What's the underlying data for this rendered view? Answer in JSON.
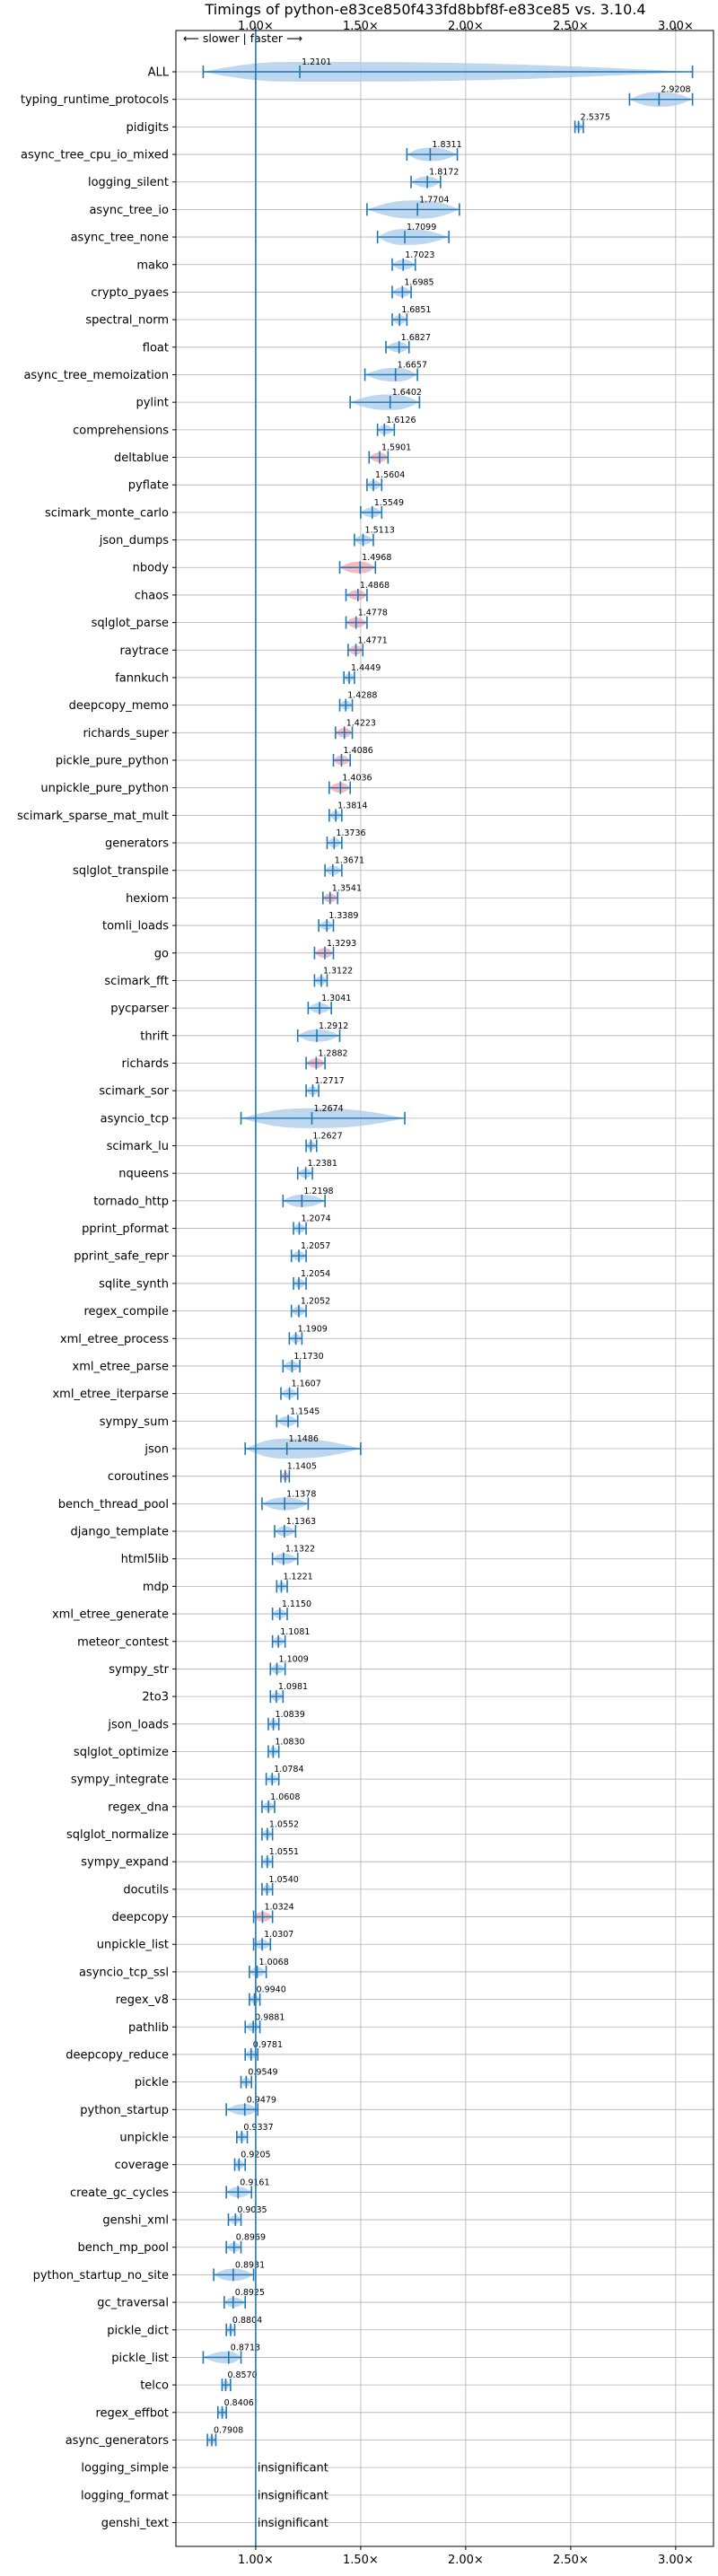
{
  "chart_data": {
    "type": "violin",
    "title": "Timings of python-e83ce850f433fd8bbf8f-e83ce85 vs. 3.10.4",
    "direction_label": "⟵ slower | faster ⟶",
    "xlim": [
      0.62,
      3.18
    ],
    "xticks": [
      1.0,
      1.5,
      2.0,
      2.5,
      3.0
    ],
    "xtick_labels": [
      "1.00×",
      "1.50×",
      "2.00×",
      "2.50×",
      "3.00×"
    ],
    "grid": true,
    "reference_line": 1.0,
    "colors": {
      "violin": "#a9c9e8",
      "marker": "#1f77b4",
      "highlight": "#f4a0a8"
    },
    "insignificant_label": "insignificant",
    "benchmarks": [
      {
        "name": "ALL",
        "value": 1.2101,
        "label": "1.2101",
        "min": 0.75,
        "max": 3.08
      },
      {
        "name": "typing_runtime_protocols",
        "value": 2.9208,
        "label": "2.9208",
        "min": 2.78,
        "max": 3.08
      },
      {
        "name": "pidigits",
        "value": 2.5375,
        "label": "2.5375",
        "min": 2.52,
        "max": 2.56
      },
      {
        "name": "async_tree_cpu_io_mixed",
        "value": 1.8311,
        "label": "1.8311",
        "min": 1.72,
        "max": 1.96
      },
      {
        "name": "logging_silent",
        "value": 1.8172,
        "label": "1.8172",
        "min": 1.74,
        "max": 1.88
      },
      {
        "name": "async_tree_io",
        "value": 1.7704,
        "label": "1.7704",
        "min": 1.53,
        "max": 1.97
      },
      {
        "name": "async_tree_none",
        "value": 1.7099,
        "label": "1.7099",
        "min": 1.58,
        "max": 1.92
      },
      {
        "name": "mako",
        "value": 1.7023,
        "label": "1.7023",
        "min": 1.65,
        "max": 1.76
      },
      {
        "name": "crypto_pyaes",
        "value": 1.6985,
        "label": "1.6985",
        "min": 1.65,
        "max": 1.74
      },
      {
        "name": "spectral_norm",
        "value": 1.6851,
        "label": "1.6851",
        "min": 1.65,
        "max": 1.72
      },
      {
        "name": "float",
        "value": 1.6827,
        "label": "1.6827",
        "min": 1.62,
        "max": 1.73
      },
      {
        "name": "async_tree_memoization",
        "value": 1.6657,
        "label": "1.6657",
        "min": 1.52,
        "max": 1.77
      },
      {
        "name": "pylint",
        "value": 1.6402,
        "label": "1.6402",
        "min": 1.45,
        "max": 1.78
      },
      {
        "name": "comprehensions",
        "value": 1.6126,
        "label": "1.6126",
        "min": 1.58,
        "max": 1.66
      },
      {
        "name": "deltablue",
        "value": 1.5901,
        "label": "1.5901",
        "min": 1.54,
        "max": 1.63,
        "highlight": true
      },
      {
        "name": "pyflate",
        "value": 1.5604,
        "label": "1.5604",
        "min": 1.53,
        "max": 1.6
      },
      {
        "name": "scimark_monte_carlo",
        "value": 1.5549,
        "label": "1.5549",
        "min": 1.5,
        "max": 1.6
      },
      {
        "name": "json_dumps",
        "value": 1.5113,
        "label": "1.5113",
        "min": 1.47,
        "max": 1.56
      },
      {
        "name": "nbody",
        "value": 1.4968,
        "label": "1.4968",
        "min": 1.4,
        "max": 1.57,
        "highlight": true
      },
      {
        "name": "chaos",
        "value": 1.4868,
        "label": "1.4868",
        "min": 1.43,
        "max": 1.53,
        "highlight": true
      },
      {
        "name": "sqlglot_parse",
        "value": 1.4778,
        "label": "1.4778",
        "min": 1.43,
        "max": 1.53,
        "highlight": true
      },
      {
        "name": "raytrace",
        "value": 1.4771,
        "label": "1.4771",
        "min": 1.44,
        "max": 1.51,
        "highlight": true
      },
      {
        "name": "fannkuch",
        "value": 1.4449,
        "label": "1.4449",
        "min": 1.42,
        "max": 1.47
      },
      {
        "name": "deepcopy_memo",
        "value": 1.4288,
        "label": "1.4288",
        "min": 1.4,
        "max": 1.46
      },
      {
        "name": "richards_super",
        "value": 1.4223,
        "label": "1.4223",
        "min": 1.38,
        "max": 1.46,
        "highlight": true
      },
      {
        "name": "pickle_pure_python",
        "value": 1.4086,
        "label": "1.4086",
        "min": 1.37,
        "max": 1.45,
        "highlight": true
      },
      {
        "name": "unpickle_pure_python",
        "value": 1.4036,
        "label": "1.4036",
        "min": 1.35,
        "max": 1.45,
        "highlight": true
      },
      {
        "name": "scimark_sparse_mat_mult",
        "value": 1.3814,
        "label": "1.3814",
        "min": 1.35,
        "max": 1.41
      },
      {
        "name": "generators",
        "value": 1.3736,
        "label": "1.3736",
        "min": 1.34,
        "max": 1.41
      },
      {
        "name": "sqlglot_transpile",
        "value": 1.3671,
        "label": "1.3671",
        "min": 1.33,
        "max": 1.41
      },
      {
        "name": "hexiom",
        "value": 1.3541,
        "label": "1.3541",
        "min": 1.32,
        "max": 1.39,
        "highlight": true
      },
      {
        "name": "tomli_loads",
        "value": 1.3389,
        "label": "1.3389",
        "min": 1.3,
        "max": 1.37
      },
      {
        "name": "go",
        "value": 1.3293,
        "label": "1.3293",
        "min": 1.28,
        "max": 1.37,
        "highlight": true
      },
      {
        "name": "scimark_fft",
        "value": 1.3122,
        "label": "1.3122",
        "min": 1.28,
        "max": 1.34
      },
      {
        "name": "pycparser",
        "value": 1.3041,
        "label": "1.3041",
        "min": 1.25,
        "max": 1.36
      },
      {
        "name": "thrift",
        "value": 1.2912,
        "label": "1.2912",
        "min": 1.2,
        "max": 1.4
      },
      {
        "name": "richards",
        "value": 1.2882,
        "label": "1.2882",
        "min": 1.24,
        "max": 1.33,
        "highlight": true
      },
      {
        "name": "scimark_sor",
        "value": 1.2717,
        "label": "1.2717",
        "min": 1.24,
        "max": 1.3
      },
      {
        "name": "asyncio_tcp",
        "value": 1.2674,
        "label": "1.2674",
        "min": 0.93,
        "max": 1.71
      },
      {
        "name": "scimark_lu",
        "value": 1.2627,
        "label": "1.2627",
        "min": 1.24,
        "max": 1.29
      },
      {
        "name": "nqueens",
        "value": 1.2381,
        "label": "1.2381",
        "min": 1.2,
        "max": 1.27
      },
      {
        "name": "tornado_http",
        "value": 1.2198,
        "label": "1.2198",
        "min": 1.13,
        "max": 1.33
      },
      {
        "name": "pprint_pformat",
        "value": 1.2074,
        "label": "1.2074",
        "min": 1.18,
        "max": 1.24
      },
      {
        "name": "pprint_safe_repr",
        "value": 1.2057,
        "label": "1.2057",
        "min": 1.17,
        "max": 1.24
      },
      {
        "name": "sqlite_synth",
        "value": 1.2054,
        "label": "1.2054",
        "min": 1.18,
        "max": 1.24
      },
      {
        "name": "regex_compile",
        "value": 1.2052,
        "label": "1.2052",
        "min": 1.17,
        "max": 1.24
      },
      {
        "name": "xml_etree_process",
        "value": 1.1909,
        "label": "1.1909",
        "min": 1.16,
        "max": 1.22
      },
      {
        "name": "xml_etree_parse",
        "value": 1.173,
        "label": "1.1730",
        "min": 1.13,
        "max": 1.21
      },
      {
        "name": "xml_etree_iterparse",
        "value": 1.1607,
        "label": "1.1607",
        "min": 1.12,
        "max": 1.2
      },
      {
        "name": "sympy_sum",
        "value": 1.1545,
        "label": "1.1545",
        "min": 1.1,
        "max": 1.2
      },
      {
        "name": "json",
        "value": 1.1486,
        "label": "1.1486",
        "min": 0.95,
        "max": 1.5
      },
      {
        "name": "coroutines",
        "value": 1.1405,
        "label": "1.1405",
        "min": 1.12,
        "max": 1.16,
        "highlight": true
      },
      {
        "name": "bench_thread_pool",
        "value": 1.1378,
        "label": "1.1378",
        "min": 1.03,
        "max": 1.25
      },
      {
        "name": "django_template",
        "value": 1.1363,
        "label": "1.1363",
        "min": 1.09,
        "max": 1.19
      },
      {
        "name": "html5lib",
        "value": 1.1322,
        "label": "1.1322",
        "min": 1.08,
        "max": 1.2
      },
      {
        "name": "mdp",
        "value": 1.1221,
        "label": "1.1221",
        "min": 1.1,
        "max": 1.15
      },
      {
        "name": "xml_etree_generate",
        "value": 1.115,
        "label": "1.1150",
        "min": 1.08,
        "max": 1.15
      },
      {
        "name": "meteor_contest",
        "value": 1.1081,
        "label": "1.1081",
        "min": 1.08,
        "max": 1.14
      },
      {
        "name": "sympy_str",
        "value": 1.1009,
        "label": "1.1009",
        "min": 1.07,
        "max": 1.14
      },
      {
        "name": "2to3",
        "value": 1.0981,
        "label": "1.0981",
        "min": 1.07,
        "max": 1.13
      },
      {
        "name": "json_loads",
        "value": 1.0839,
        "label": "1.0839",
        "min": 1.06,
        "max": 1.11
      },
      {
        "name": "sqlglot_optimize",
        "value": 1.083,
        "label": "1.0830",
        "min": 1.06,
        "max": 1.11
      },
      {
        "name": "sympy_integrate",
        "value": 1.0784,
        "label": "1.0784",
        "min": 1.05,
        "max": 1.11
      },
      {
        "name": "regex_dna",
        "value": 1.0608,
        "label": "1.0608",
        "min": 1.03,
        "max": 1.09
      },
      {
        "name": "sqlglot_normalize",
        "value": 1.0552,
        "label": "1.0552",
        "min": 1.03,
        "max": 1.08
      },
      {
        "name": "sympy_expand",
        "value": 1.0551,
        "label": "1.0551",
        "min": 1.03,
        "max": 1.08
      },
      {
        "name": "docutils",
        "value": 1.054,
        "label": "1.0540",
        "min": 1.03,
        "max": 1.08
      },
      {
        "name": "deepcopy",
        "value": 1.0324,
        "label": "1.0324",
        "min": 0.99,
        "max": 1.08,
        "highlight": true
      },
      {
        "name": "unpickle_list",
        "value": 1.0307,
        "label": "1.0307",
        "min": 0.99,
        "max": 1.07
      },
      {
        "name": "asyncio_tcp_ssl",
        "value": 1.0068,
        "label": "1.0068",
        "min": 0.97,
        "max": 1.05
      },
      {
        "name": "regex_v8",
        "value": 0.994,
        "label": "0.9940",
        "min": 0.97,
        "max": 1.02
      },
      {
        "name": "pathlib",
        "value": 0.9881,
        "label": "0.9881",
        "min": 0.95,
        "max": 1.02
      },
      {
        "name": "deepcopy_reduce",
        "value": 0.9781,
        "label": "0.9781",
        "min": 0.95,
        "max": 1.01
      },
      {
        "name": "pickle",
        "value": 0.9549,
        "label": "0.9549",
        "min": 0.93,
        "max": 0.98
      },
      {
        "name": "python_startup",
        "value": 0.9479,
        "label": "0.9479",
        "min": 0.86,
        "max": 1.01
      },
      {
        "name": "unpickle",
        "value": 0.9337,
        "label": "0.9337",
        "min": 0.91,
        "max": 0.96
      },
      {
        "name": "coverage",
        "value": 0.9205,
        "label": "0.9205",
        "min": 0.9,
        "max": 0.95
      },
      {
        "name": "create_gc_cycles",
        "value": 0.9161,
        "label": "0.9161",
        "min": 0.86,
        "max": 0.98
      },
      {
        "name": "genshi_xml",
        "value": 0.9035,
        "label": "0.9035",
        "min": 0.87,
        "max": 0.93
      },
      {
        "name": "bench_mp_pool",
        "value": 0.8969,
        "label": "0.8969",
        "min": 0.86,
        "max": 0.93
      },
      {
        "name": "python_startup_no_site",
        "value": 0.8931,
        "label": "0.8931",
        "min": 0.8,
        "max": 0.99
      },
      {
        "name": "gc_traversal",
        "value": 0.8925,
        "label": "0.8925",
        "min": 0.85,
        "max": 0.95
      },
      {
        "name": "pickle_dict",
        "value": 0.8804,
        "label": "0.8804",
        "min": 0.86,
        "max": 0.9
      },
      {
        "name": "pickle_list",
        "value": 0.8713,
        "label": "0.8713",
        "min": 0.75,
        "max": 0.93
      },
      {
        "name": "telco",
        "value": 0.857,
        "label": "0.8570",
        "min": 0.84,
        "max": 0.88
      },
      {
        "name": "regex_effbot",
        "value": 0.8406,
        "label": "0.8406",
        "min": 0.82,
        "max": 0.86
      },
      {
        "name": "async_generators",
        "value": 0.7908,
        "label": "0.7908",
        "min": 0.77,
        "max": 0.81
      },
      {
        "name": "logging_simple",
        "insignificant": true
      },
      {
        "name": "logging_format",
        "insignificant": true
      },
      {
        "name": "genshi_text",
        "insignificant": true
      }
    ]
  }
}
